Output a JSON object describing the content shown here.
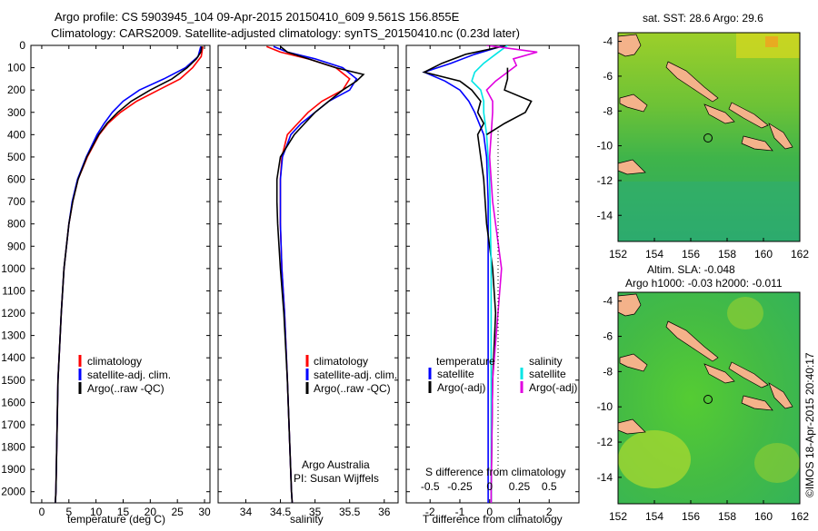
{
  "header": {
    "line1": "Argo profile: CS 5903945_104 09-Apr-2015 20150410_609 9.561S 156.855E",
    "line2": "Climatology: CARS2009. Satellite-adjusted climatology: synTS_20150410.nc (0.23d later)"
  },
  "colors": {
    "climatology": "#ff0000",
    "satellite": "#0000ff",
    "argo": "#000000",
    "sat_salinity": "#00e5e5",
    "argo_salinity": "#e000e0"
  },
  "legend": {
    "climatology": "climatology",
    "satellite_adj": "satellite-adj. clim.",
    "argo_raw": "Argo(..raw -QC)",
    "temperature": "temperature",
    "salinity": "salinity",
    "satellite": "satellite",
    "argo_adj": "Argo(-adj)"
  },
  "credit": {
    "org": "Argo Australia",
    "pi": "PI: Susan Wijffels",
    "imos": "©IMOS 18-Apr-2015 20:40:17"
  },
  "chart_data": [
    {
      "type": "line",
      "title": "",
      "xlabel": "temperature (deg C)",
      "ylabel": "",
      "xlim": [
        -2,
        31
      ],
      "ylim": [
        2050,
        0
      ],
      "xticks": [
        0,
        5,
        10,
        15,
        20,
        25,
        30
      ],
      "yticks": [
        0,
        100,
        200,
        300,
        400,
        500,
        600,
        700,
        800,
        900,
        1000,
        1100,
        1200,
        1300,
        1400,
        1500,
        1600,
        1700,
        1800,
        1900,
        2000
      ],
      "series": [
        {
          "name": "climatology",
          "depth": [
            5,
            50,
            100,
            150,
            200,
            250,
            300,
            350,
            400,
            500,
            600,
            700,
            800,
            1000,
            1200,
            1500,
            2000,
            2050
          ],
          "values": [
            29.7,
            29.4,
            27.8,
            25.5,
            21.5,
            17.5,
            14.5,
            12.2,
            10.6,
            8.4,
            6.7,
            5.7,
            5.0,
            4.1,
            3.6,
            3.0,
            2.6,
            2.5
          ]
        },
        {
          "name": "satellite-adj. clim.",
          "depth": [
            5,
            50,
            100,
            150,
            200,
            250,
            300,
            350,
            400,
            500,
            600,
            700,
            800,
            1000,
            1200,
            1500,
            2000,
            2050
          ],
          "values": [
            29.3,
            28.8,
            26.5,
            22.5,
            18.0,
            15.0,
            13.0,
            11.5,
            10.2,
            8.2,
            6.6,
            5.6,
            5.0,
            4.1,
            3.6,
            3.0,
            2.6,
            2.5
          ]
        },
        {
          "name": "Argo(..raw -QC)",
          "depth": [
            5,
            30,
            60,
            100,
            150,
            200,
            250,
            300,
            350,
            400,
            500,
            600,
            700,
            800,
            1000,
            1200,
            1500,
            2000,
            2050
          ],
          "values": [
            29.5,
            29.3,
            28.5,
            26.8,
            24.0,
            20.0,
            16.5,
            14.0,
            12.0,
            10.5,
            8.3,
            6.7,
            5.7,
            5.0,
            4.1,
            3.6,
            3.0,
            2.6,
            2.5
          ]
        }
      ]
    },
    {
      "type": "line",
      "title": "",
      "xlabel": "salinity",
      "ylabel": "",
      "xlim": [
        33.6,
        36.2
      ],
      "ylim": [
        2050,
        0
      ],
      "xticks": [
        34,
        34.5,
        35,
        35.5,
        36
      ],
      "series": [
        {
          "name": "climatology",
          "depth": [
            5,
            30,
            60,
            100,
            150,
            200,
            250,
            300,
            350,
            400,
            500,
            600,
            700,
            800,
            1000,
            1200,
            1500,
            2000,
            2050
          ],
          "values": [
            34.3,
            34.5,
            34.9,
            35.3,
            35.5,
            35.4,
            35.1,
            34.9,
            34.75,
            34.6,
            34.52,
            34.5,
            34.5,
            34.5,
            34.52,
            34.56,
            34.6,
            34.66,
            34.67
          ]
        },
        {
          "name": "satellite-adj. clim.",
          "depth": [
            5,
            30,
            60,
            100,
            150,
            200,
            250,
            300,
            350,
            400,
            500,
            600,
            700,
            800,
            1000,
            1200,
            1500,
            2000,
            2050
          ],
          "values": [
            34.4,
            34.6,
            35.0,
            35.4,
            35.6,
            35.5,
            35.2,
            35.0,
            34.8,
            34.65,
            34.53,
            34.5,
            34.5,
            34.5,
            34.52,
            34.56,
            34.6,
            34.66,
            34.67
          ]
        },
        {
          "name": "Argo(..raw -QC)",
          "depth": [
            5,
            30,
            60,
            100,
            130,
            160,
            200,
            250,
            300,
            350,
            400,
            450,
            500,
            600,
            700,
            800,
            1000,
            1200,
            1500,
            2000,
            2050
          ],
          "values": [
            34.5,
            34.6,
            34.9,
            35.3,
            35.7,
            35.6,
            35.4,
            35.2,
            35.0,
            34.85,
            34.7,
            34.6,
            34.5,
            34.45,
            34.45,
            34.46,
            34.5,
            34.55,
            34.6,
            34.66,
            34.67
          ]
        }
      ]
    },
    {
      "type": "line",
      "title": "",
      "xlabel": "T difference from climatology",
      "ylabel": "",
      "xlim": [
        -2.8,
        3.0
      ],
      "ylim": [
        2050,
        0
      ],
      "xticks": [
        -2,
        -1,
        0,
        1,
        2
      ],
      "secondary_xlabel": "S difference from climatology",
      "secondary_xtick_labels": [
        "-0.5",
        "-0.25",
        "0",
        "0.25",
        "0.5"
      ],
      "series": [
        {
          "name": "temperature satellite",
          "depth": [
            0,
            40,
            80,
            120,
            160,
            200,
            250,
            300,
            400,
            500,
            700,
            1000,
            1500,
            2000,
            2050
          ],
          "values": [
            0.5,
            -0.5,
            -1.3,
            -2.2,
            -1.5,
            -1.0,
            -0.7,
            -0.5,
            -0.2,
            -0.1,
            -0.05,
            -0.05,
            -0.05,
            -0.05,
            -0.05
          ]
        },
        {
          "name": "temperature Argo(-adj)",
          "depth": [
            0,
            40,
            80,
            120,
            160,
            200,
            250,
            300,
            350,
            400,
            500,
            600,
            800,
            1000,
            1200,
            1500,
            2000,
            2050
          ],
          "values": [
            0.6,
            -0.8,
            -1.6,
            -2.2,
            -1.0,
            -0.6,
            -0.3,
            -0.4,
            -0.2,
            -0.4,
            -0.3,
            -0.2,
            -0.1,
            0.1,
            0.2,
            0.1,
            0.05,
            0.05
          ]
        },
        {
          "name": "salinity satellite",
          "depth": [
            0,
            40,
            80,
            120,
            160,
            200,
            250,
            300,
            400,
            600,
            1000,
            1500,
            2000,
            2050
          ],
          "values": [
            0.6,
            0.2,
            -0.2,
            -0.5,
            -0.6,
            -0.3,
            -0.2,
            -0.2,
            -0.1,
            0.0,
            0.05,
            0.05,
            0.05,
            0.05
          ]
        },
        {
          "name": "salinity Argo(-adj)",
          "depth": [
            0,
            30,
            60,
            90,
            120,
            160,
            200,
            250,
            300,
            400,
            500,
            700,
            1000,
            1500,
            2000,
            2050
          ],
          "values": [
            -0.1,
            1.6,
            0.8,
            0.9,
            0.6,
            0.2,
            -0.1,
            0.1,
            0.1,
            0.05,
            0.0,
            0.1,
            0.4,
            0.1,
            0.05,
            0.05
          ]
        },
        {
          "name": "Argo(-adj) T black",
          "depth": [
            100,
            150,
            200,
            250,
            300,
            350,
            400
          ],
          "values": [
            0.6,
            0.6,
            0.5,
            1.4,
            1.2,
            0.5,
            -0.1
          ]
        }
      ]
    },
    {
      "type": "heatmap",
      "title": "sat. SST: 28.6 Argo: 29.6",
      "xlim": [
        152,
        162
      ],
      "ylim": [
        -15.5,
        -3.5
      ],
      "xticks": [
        152,
        154,
        156,
        158,
        160,
        162
      ],
      "yticks": [
        -4,
        -6,
        -8,
        -10,
        -12,
        -14
      ],
      "marker": {
        "lon": 156.855,
        "lat": -9.561
      }
    },
    {
      "type": "heatmap",
      "title": "Altim. SLA: -0.048",
      "subtitle": "Argo h1000: -0.03 h2000: -0.011",
      "xlim": [
        152,
        162
      ],
      "ylim": [
        -15.5,
        -3.5
      ],
      "xticks": [
        152,
        154,
        156,
        158,
        160,
        162
      ],
      "yticks": [
        -4,
        -6,
        -8,
        -10,
        -12,
        -14
      ],
      "marker": {
        "lon": 156.855,
        "lat": -9.561
      }
    }
  ]
}
